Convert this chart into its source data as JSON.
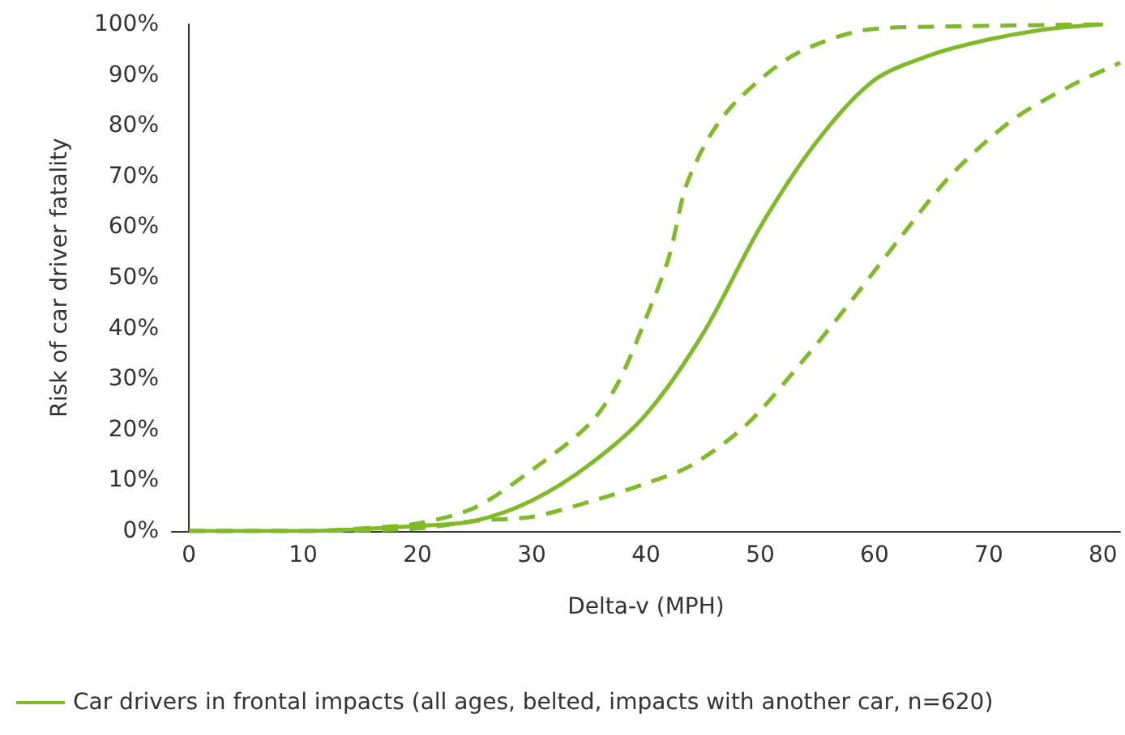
{
  "chart_data": {
    "type": "line",
    "xlabel": "Delta-v (MPH)",
    "ylabel": "Risk of car driver fatality",
    "xlim": [
      -1.5,
      81.5
    ],
    "xticks": [
      0,
      10,
      20,
      30,
      40,
      50,
      60,
      70,
      80
    ],
    "ylim": [
      0,
      100
    ],
    "yticks": [
      {
        "value": 0,
        "label": "0%"
      },
      {
        "value": 10,
        "label": "10%"
      },
      {
        "value": 20,
        "label": "20%"
      },
      {
        "value": 30,
        "label": "30%"
      },
      {
        "value": 40,
        "label": "40%"
      },
      {
        "value": 50,
        "label": "50%"
      },
      {
        "value": 60,
        "label": "60%"
      },
      {
        "value": 70,
        "label": "70%"
      },
      {
        "value": 80,
        "label": "80%"
      },
      {
        "value": 90,
        "label": "90%"
      },
      {
        "value": 100,
        "label": "100%"
      }
    ],
    "grid": false,
    "legend": "bottom",
    "marker": "none",
    "series": [
      {
        "name": "Car drivers in frontal impacts (all ages, belted, impacts with another car, n=620)",
        "color": "#7fba27",
        "line_style": "solid",
        "x": [
          0,
          10,
          20,
          25,
          30,
          35,
          40,
          45,
          50,
          55,
          60,
          65,
          70,
          75,
          80
        ],
        "values": [
          0,
          0,
          1,
          2,
          6,
          13,
          23,
          39,
          60,
          77,
          89,
          94,
          97,
          99,
          100
        ]
      },
      {
        "color": "#7fba27",
        "line_style": "dashed",
        "x": [
          0,
          10,
          15,
          20,
          25,
          30,
          35,
          37.5,
          40,
          42,
          43.5,
          45.6,
          48,
          53,
          59.6,
          67.6,
          80
        ],
        "values": [
          0,
          0,
          0.5,
          1.5,
          4.6,
          12,
          21,
          29,
          42,
          54,
          68,
          78,
          85,
          94,
          99,
          99.6,
          100
        ]
      },
      {
        "color": "#7fba27",
        "line_style": "dashed",
        "x": [
          0,
          10,
          20,
          25,
          30,
          35.4,
          40,
          44,
          48.8,
          53.7,
          58,
          62.3,
          66.6,
          72,
          77.3,
          81.5
        ],
        "values": [
          0,
          0,
          0.5,
          2,
          2.8,
          6,
          9.4,
          13,
          21,
          33.5,
          45.5,
          58,
          70,
          81,
          88,
          92.4
        ]
      }
    ]
  }
}
